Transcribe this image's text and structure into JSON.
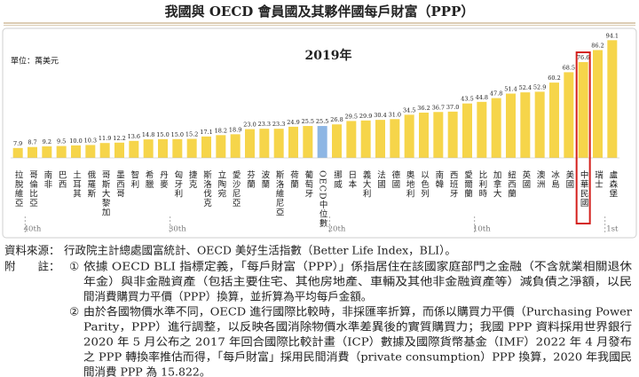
{
  "chart_data": {
    "type": "bar",
    "title": "我國與 OECD 會員國及其夥伴國每戶財富（PPP）",
    "unit_label": "單位：萬美元",
    "subtitle": "2019年",
    "categories": [
      "拉脫維亞",
      "哥倫比亞",
      "南非",
      "巴西",
      "土耳其",
      "俄羅斯",
      "哥斯大黎加",
      "墨西哥",
      "智利",
      "希臘",
      "丹麥",
      "匈牙利",
      "捷克",
      "斯洛伐克",
      "立陶宛",
      "愛沙尼亞",
      "芬蘭",
      "波蘭",
      "斯洛維尼亞",
      "荷蘭",
      "葡萄牙",
      "OECD中位數",
      "挪威",
      "日本",
      "義大利",
      "法國",
      "德國",
      "奧地利",
      "以色列",
      "南韓",
      "西班牙",
      "愛爾蘭",
      "比利時",
      "加拿大",
      "紐西蘭",
      "英國",
      "澳洲",
      "冰島",
      "美國",
      "中華民國",
      "瑞士",
      "盧森堡"
    ],
    "values": [
      7.9,
      8.7,
      9.2,
      9.5,
      10.0,
      10.3,
      11.9,
      12.2,
      13.6,
      14.8,
      15.0,
      15.0,
      15.2,
      17.1,
      18.2,
      18.9,
      23.0,
      23.3,
      23.3,
      24.9,
      25.5,
      25.5,
      26.8,
      29.5,
      29.9,
      30.4,
      31.0,
      34.5,
      36.2,
      36.7,
      37.0,
      43.5,
      44.8,
      47.8,
      51.4,
      52.4,
      52.9,
      60.2,
      68.5,
      76.6,
      86.2,
      94.1
    ],
    "value_labels": [
      "7.9",
      "8.7",
      "9.2",
      "9.5",
      "10.0",
      "10.3",
      "11.9",
      "12.2",
      "13.6",
      "14.8",
      "15.0",
      "15.0",
      "15.2",
      "17.1",
      "18.2",
      "18.9",
      "23.0",
      "23.3",
      "23.3",
      "24.9",
      "25.5",
      "25.5",
      "26.8",
      "29.5",
      "29.9",
      "30.4",
      "31.0",
      "34.5",
      "36.2",
      "36.7",
      "37.0",
      "43.5",
      "44.8",
      "47.8",
      "51.4",
      "52.4",
      "52.9",
      "60.2",
      "68.5",
      "76.6",
      "86.2",
      "94.1"
    ],
    "color": "#f6d54a",
    "highlight": {
      "index": 21,
      "color": "#8db6e4"
    },
    "outline": {
      "index": 39,
      "color": "#d4201c"
    },
    "ylim": [
      0,
      100
    ],
    "rank_labels": [
      {
        "index": 1,
        "label": "40th"
      },
      {
        "index": 11,
        "label": "30th"
      },
      {
        "index": 22,
        "label": "20th"
      },
      {
        "index": 32,
        "label": "10th"
      },
      {
        "index": 41,
        "label": "1st"
      }
    ]
  },
  "notes": {
    "source_label": "資料來源：",
    "source": "行政院主計總處國富統計、OECD 美好生活指數（Better Life Index，BLI）。",
    "notes_label": "附　　註：",
    "items": [
      {
        "marker": "①",
        "lines": [
          "依據 OECD BLI 指標定義，「每戶財富（PPP）」係指居住在該國家庭部門之金融（不含就業相關退休",
          "年金）與非金融資產（包括主要住宅、其他房地產、車輛及其他非金融資產等）減負債之淨額，以民",
          "間消費購買力平價（PPP）換算，並折算為平均每戶金額。"
        ]
      },
      {
        "marker": "②",
        "lines": [
          "由於各國物價水準不同，OECD 進行國際比較時，非採匯率折算，而係以購買力平價（Purchasing Power",
          "Parity，PPP）進行調整，以反映各國消除物價水準差異後的實質購買力；我國 PPP 資料採用世界銀行",
          "2020 年 5 月公布之 2017 年回合國際比較計畫（ICP）數據及國際貨幣基金（IMF）2022 年 4 月發布",
          "之 PPP 轉換率推估而得，「每戶財富」採用民間消費（private consumption）PPP 換算，2020 年我國民",
          "間消費 PPP 為 15.822。"
        ]
      }
    ]
  }
}
